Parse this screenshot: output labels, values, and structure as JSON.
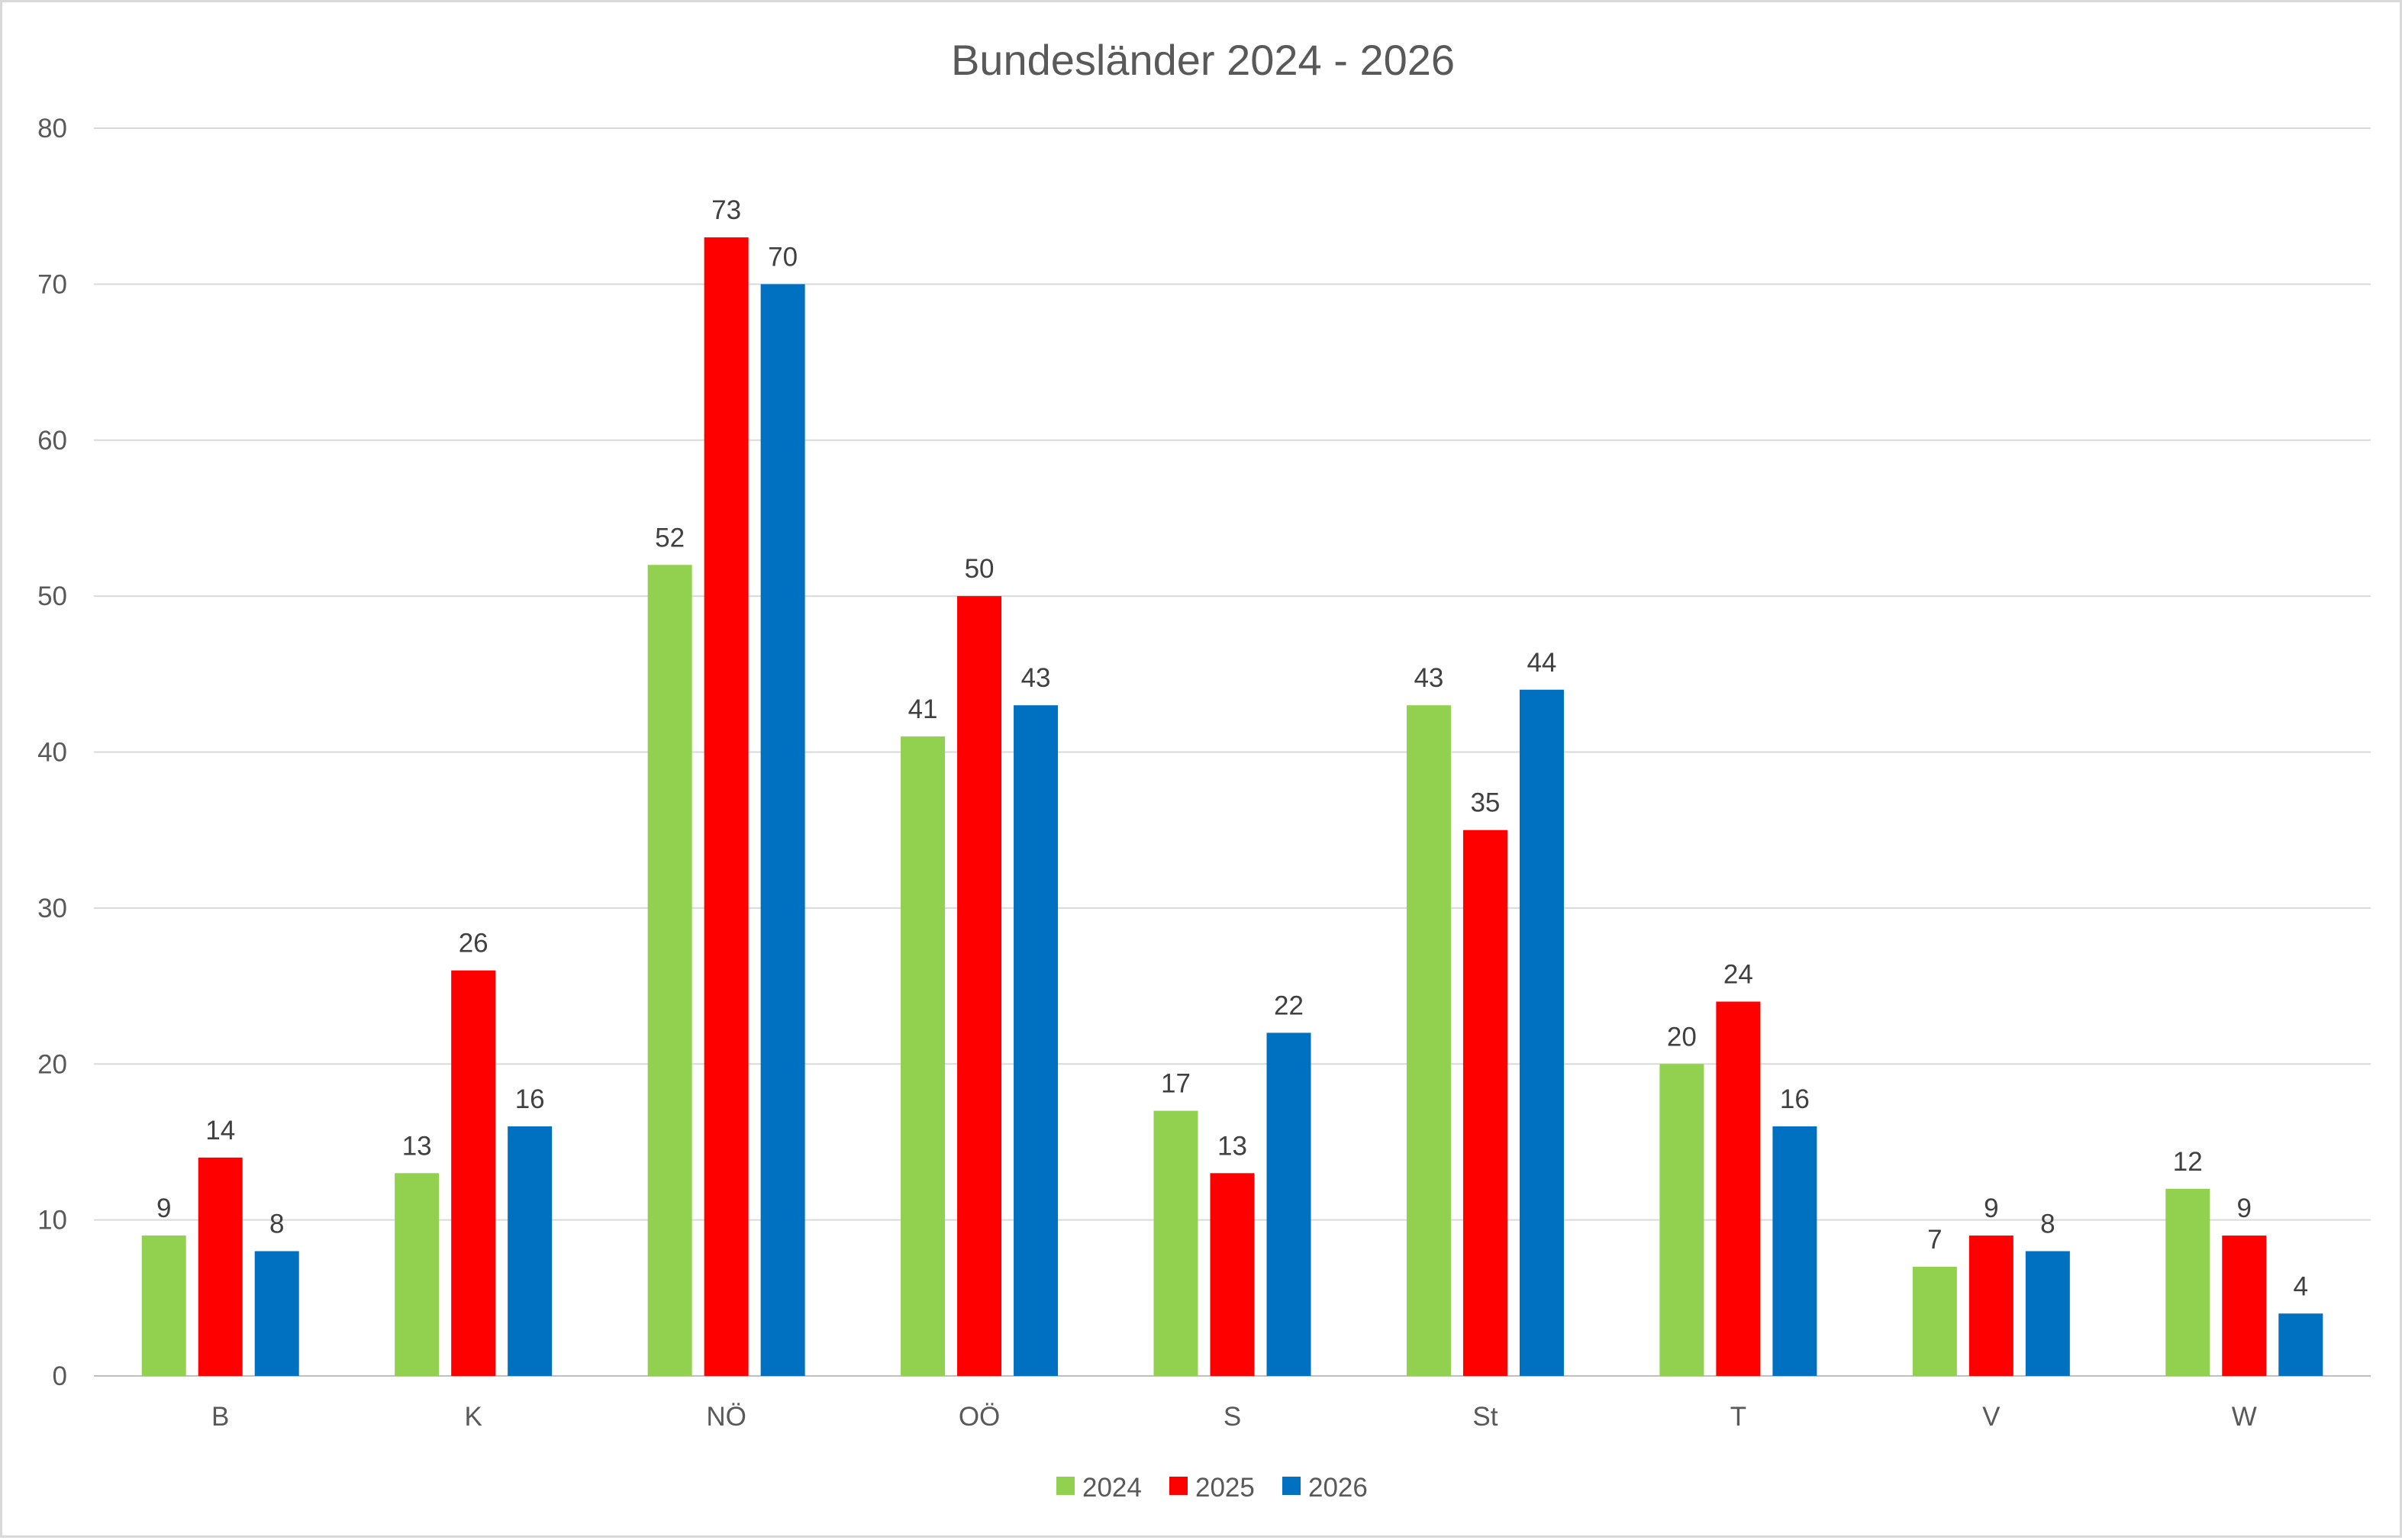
{
  "chart_data": {
    "type": "bar",
    "title": "Bundesländer 2024 - 2026",
    "xlabel": "",
    "ylabel": "",
    "categories": [
      "B",
      "K",
      "NÖ",
      "OÖ",
      "S",
      "St",
      "T",
      "V",
      "W"
    ],
    "series": [
      {
        "name": "2024",
        "color": "#92d050",
        "values": [
          9,
          13,
          52,
          41,
          17,
          43,
          20,
          7,
          12
        ]
      },
      {
        "name": "2025",
        "color": "#ff0000",
        "values": [
          14,
          26,
          73,
          50,
          13,
          35,
          24,
          9,
          9
        ]
      },
      {
        "name": "2026",
        "color": "#0070c0",
        "values": [
          8,
          16,
          70,
          43,
          22,
          44,
          16,
          8,
          4
        ]
      }
    ],
    "ylim": [
      0,
      80
    ],
    "yticks": [
      0,
      10,
      20,
      30,
      40,
      50,
      60,
      70,
      80
    ],
    "grid": true,
    "legend_position": "bottom",
    "data_labels": true
  }
}
